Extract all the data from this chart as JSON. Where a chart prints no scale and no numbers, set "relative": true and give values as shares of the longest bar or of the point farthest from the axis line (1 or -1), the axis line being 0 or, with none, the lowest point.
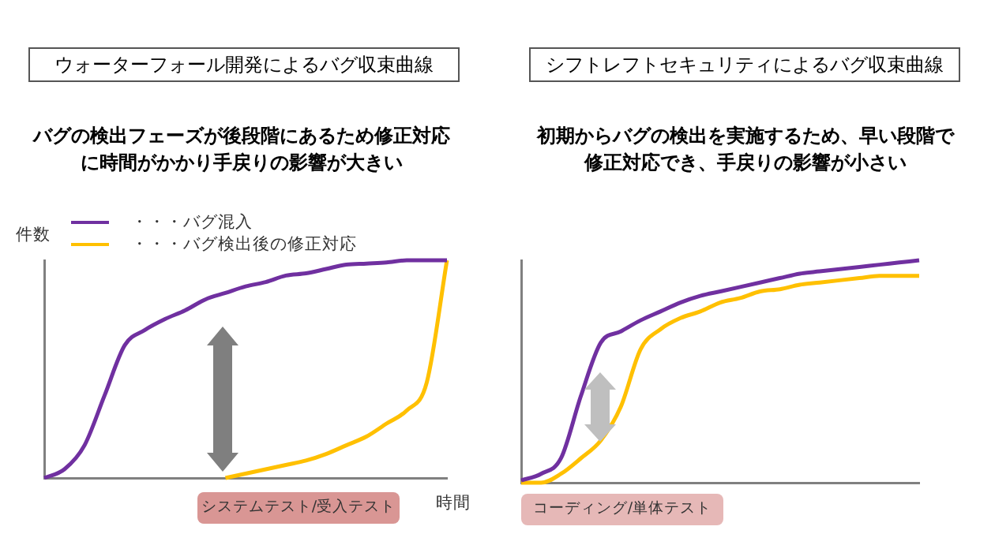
{
  "chart_data": [
    {
      "type": "line",
      "title": "ウォーターフォール開発によるバグ収束曲線",
      "subtitle": "バグの検出フェーズが後段階にあるため修正対応に時間がかかり手戻りの影響が大きい",
      "ylabel": "件数",
      "xlabel": "時間",
      "relative": true,
      "tick_labels": false,
      "marker": "none",
      "legend": "top left",
      "annotations": [
        "システムテスト/受入テスト"
      ],
      "categories": [
        null,
        null,
        null,
        null,
        null,
        null,
        null,
        null,
        null,
        null,
        null,
        null,
        null,
        null,
        null,
        null,
        null,
        null,
        null,
        null,
        null
      ],
      "series": [
        {
          "name": "・・・バグ混入",
          "color": "#7030a0",
          "values": [
            0,
            0.04,
            0.15,
            0.38,
            0.61,
            0.68,
            0.73,
            0.77,
            0.82,
            0.85,
            0.88,
            0.9,
            0.93,
            0.94,
            0.96,
            0.98,
            0.985,
            0.99,
            1,
            1,
            1
          ]
        },
        {
          "name": "・・・バグ検出後の修正対応",
          "color": "#ffc000",
          "values": [
            null,
            null,
            null,
            null,
            null,
            null,
            null,
            null,
            null,
            0,
            0.02,
            0.04,
            0.06,
            0.08,
            0.11,
            0.15,
            0.19,
            0.25,
            0.31,
            0.44,
            1
          ]
        }
      ]
    },
    {
      "type": "line",
      "title": "シフトレフトセキュリティによるバグ収束曲線",
      "subtitle": "初期からバグの検出を実施するため、早い段階で修正対応でき、手戻りの影響が小さい",
      "relative": true,
      "tick_labels": false,
      "marker": "none",
      "annotations": [
        "コーディング/単体テスト"
      ],
      "categories": [
        null,
        null,
        null,
        null,
        null,
        null,
        null,
        null,
        null,
        null,
        null,
        null,
        null,
        null,
        null,
        null,
        null,
        null,
        null,
        null,
        null
      ],
      "series": [
        {
          "color": "#7030a0",
          "values": [
            0.01,
            0.04,
            0.11,
            0.39,
            0.63,
            0.68,
            0.73,
            0.77,
            0.81,
            0.84,
            0.86,
            0.88,
            0.9,
            0.92,
            0.94,
            0.95,
            0.96,
            0.97,
            0.98,
            0.99,
            1
          ]
        },
        {
          "color": "#ffc000",
          "values": [
            0,
            0,
            0.04,
            0.11,
            0.19,
            0.34,
            0.6,
            0.69,
            0.74,
            0.77,
            0.81,
            0.83,
            0.86,
            0.87,
            0.89,
            0.9,
            0.91,
            0.92,
            0.93,
            0.93,
            0.93
          ]
        }
      ]
    }
  ]
}
